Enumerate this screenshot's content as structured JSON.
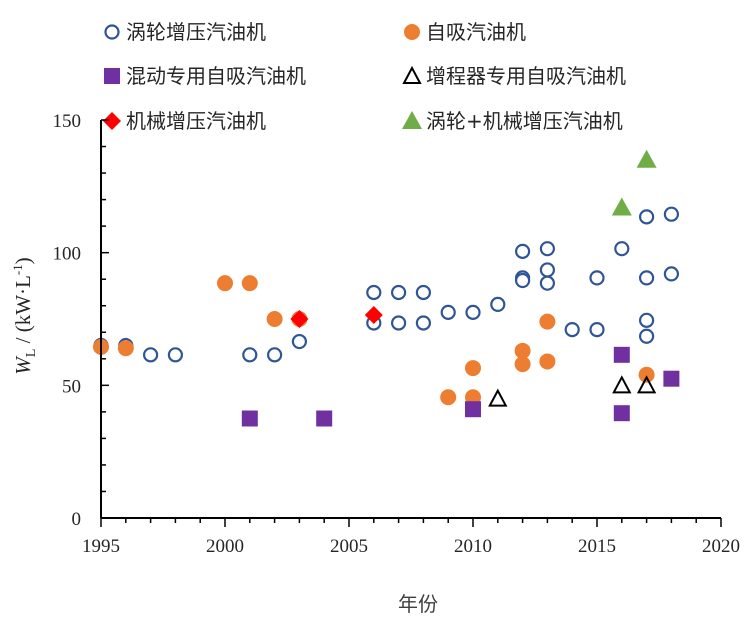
{
  "chart_data": {
    "type": "scatter",
    "xlabel": "年份",
    "ylabel": {
      "symbol": "W",
      "subscript": "L",
      "unit": " / (kW·L",
      "unit_sup": "-1",
      "unit_close": ")"
    },
    "xlim": [
      1995,
      2020
    ],
    "ylim": [
      0,
      150
    ],
    "xticks": [
      1995,
      2000,
      2005,
      2010,
      2015,
      2020
    ],
    "yticks": [
      0,
      50,
      100,
      150
    ],
    "grid": false,
    "legend_position": "top",
    "series": [
      {
        "name": "涡轮增压汽油机",
        "marker": "open-circle",
        "color": "#2f5597",
        "points": [
          [
            1995,
            65
          ],
          [
            1996,
            65
          ],
          [
            1997,
            61.5
          ],
          [
            1998,
            61.5
          ],
          [
            2001,
            61.5
          ],
          [
            2002,
            61.5
          ],
          [
            2003,
            66.5
          ],
          [
            2006,
            85
          ],
          [
            2006,
            73.5
          ],
          [
            2007,
            85
          ],
          [
            2007,
            73.5
          ],
          [
            2008,
            85
          ],
          [
            2008,
            73.5
          ],
          [
            2009,
            77.5
          ],
          [
            2010,
            77.5
          ],
          [
            2011,
            80.5
          ],
          [
            2012,
            100.5
          ],
          [
            2012,
            90.5
          ],
          [
            2012,
            89.5
          ],
          [
            2013,
            101.5
          ],
          [
            2013,
            93.5
          ],
          [
            2013,
            88.5
          ],
          [
            2014,
            71
          ],
          [
            2015,
            71
          ],
          [
            2015,
            90.5
          ],
          [
            2016,
            101.5
          ],
          [
            2017,
            113.5
          ],
          [
            2017,
            90.5
          ],
          [
            2017,
            74.5
          ],
          [
            2017,
            68.5
          ],
          [
            2018,
            114.5
          ],
          [
            2018,
            92
          ]
        ]
      },
      {
        "name": "自吸汽油机",
        "marker": "filled-circle",
        "color": "#ed7d31",
        "points": [
          [
            1995,
            64.5
          ],
          [
            1996,
            64
          ],
          [
            2000,
            88.5
          ],
          [
            2001,
            88.5
          ],
          [
            2002,
            75
          ],
          [
            2003,
            75
          ],
          [
            2009,
            45.5
          ],
          [
            2010,
            56.5
          ],
          [
            2010,
            45.5
          ],
          [
            2012,
            63
          ],
          [
            2012,
            58
          ],
          [
            2013,
            74
          ],
          [
            2013,
            59
          ],
          [
            2017,
            54
          ]
        ]
      },
      {
        "name": "混动专用自吸汽油机",
        "marker": "filled-square",
        "color": "#7030a0",
        "points": [
          [
            2001,
            37.5
          ],
          [
            2004,
            37.5
          ],
          [
            2010,
            41
          ],
          [
            2016,
            61.5
          ],
          [
            2016,
            39.5
          ],
          [
            2018,
            52.5
          ]
        ]
      },
      {
        "name": "增程器专用自吸汽油机",
        "marker": "open-triangle",
        "color": "#000000",
        "points": [
          [
            2011,
            45
          ],
          [
            2016,
            50
          ],
          [
            2017,
            50
          ]
        ]
      },
      {
        "name": "机械增压汽油机",
        "marker": "filled-diamond",
        "color": "#ff0000",
        "points": [
          [
            2003,
            75
          ],
          [
            2006,
            76.5
          ]
        ]
      },
      {
        "name": "涡轮+机械增压汽油机",
        "marker": "filled-triangle",
        "color": "#70ad47",
        "points": [
          [
            2016,
            117
          ],
          [
            2017,
            135
          ]
        ]
      }
    ]
  }
}
